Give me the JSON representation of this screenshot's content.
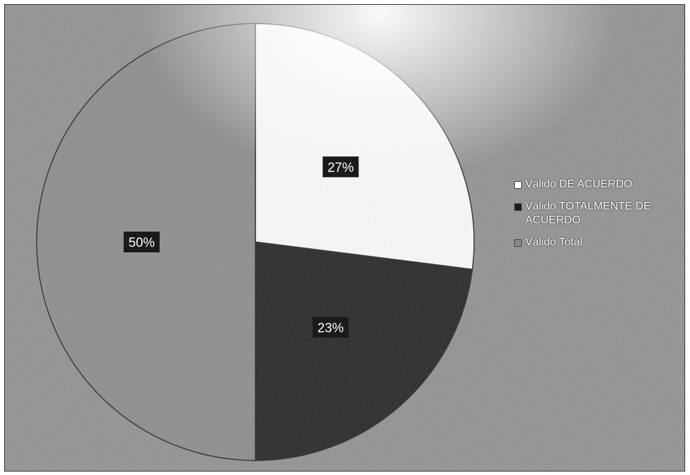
{
  "chart_data": {
    "type": "pie",
    "title": "",
    "slices": [
      {
        "label": "Válido DE ACUERDO",
        "value": 27,
        "display": "27%",
        "color": "#ffffff"
      },
      {
        "label": "Válido TOTALMENTE DE ACUERDO",
        "value": 23,
        "display": "23%",
        "color": "#1c1c1c"
      },
      {
        "label": "Válido Total",
        "value": 50,
        "display": "50%",
        "color": "#8a8a8a"
      }
    ],
    "legend_position": "right"
  },
  "colors": {
    "background": "#8f8f8f",
    "label_box": "#1a1a1a",
    "label_text": "#ffffff"
  }
}
